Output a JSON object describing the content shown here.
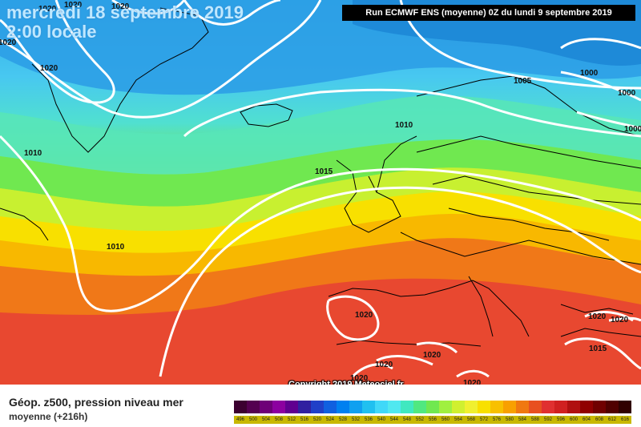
{
  "header": {
    "date_line1": "mercredi 18 septembre 2019",
    "date_line2": "2:00 locale",
    "run_info": "Run ECMWF ENS (moyenne) 0Z du lundi 9 septembre 2019"
  },
  "copyright": "Copyright 2019 Meteociel.fr",
  "legend": {
    "title": "Géop. z500, pression niveau mer",
    "subtitle": "moyenne   (+216h)",
    "scale_labels": [
      "496",
      "500",
      "504",
      "508",
      "512",
      "516",
      "520",
      "524",
      "528",
      "532",
      "536",
      "540",
      "544",
      "548",
      "552",
      "556",
      "560",
      "564",
      "568",
      "572",
      "576",
      "580",
      "584",
      "588",
      "592",
      "596",
      "600",
      "604",
      "608",
      "612",
      "616"
    ],
    "scale_colors": [
      "#3c0030",
      "#540050",
      "#6e0078",
      "#8c00a0",
      "#600090",
      "#3020a0",
      "#2040c8",
      "#1060e0",
      "#0080f0",
      "#10a0f0",
      "#20c0f0",
      "#40d8f8",
      "#50e8f0",
      "#40e8c0",
      "#50e880",
      "#70e850",
      "#a0f040",
      "#d0f030",
      "#f0f030",
      "#f8e000",
      "#f8c000",
      "#f8a000",
      "#f07810",
      "#e85020",
      "#e03030",
      "#d02020",
      "#b01010",
      "#900000",
      "#700000",
      "#500000",
      "#300000"
    ]
  },
  "isobars": {
    "labels": [
      "1020",
      "1020",
      "1020",
      "1020",
      "1020",
      "1010",
      "1010",
      "1005",
      "1000",
      "1000",
      "1000",
      "1015",
      "1010",
      "1020",
      "1020",
      "1020",
      "1020",
      "1020",
      "1020",
      "1015",
      "1020"
    ]
  },
  "colors": {
    "isobar": "#ffffff",
    "coastline": "#000000"
  }
}
